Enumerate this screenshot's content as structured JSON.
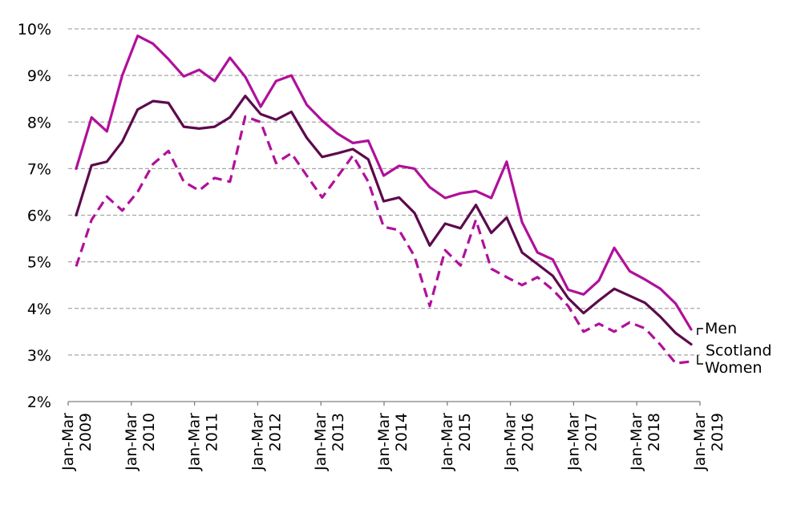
{
  "chart_data": {
    "type": "line",
    "title": "",
    "xlabel": "",
    "ylabel": "",
    "ylim": [
      0.02,
      0.1
    ],
    "y_ticks": [
      "2%",
      "3%",
      "4%",
      "5%",
      "6%",
      "7%",
      "8%",
      "9%",
      "10%"
    ],
    "x_tick_labels": [
      {
        "top": "Jan-Mar",
        "bottom": "2009"
      },
      {
        "top": "Jan-Mar",
        "bottom": "2010"
      },
      {
        "top": "Jan-Mar",
        "bottom": "2011"
      },
      {
        "top": "Jan-Mar",
        "bottom": "2012"
      },
      {
        "top": "Jan-Mar",
        "bottom": "2013"
      },
      {
        "top": "Jan-Mar",
        "bottom": "2014"
      },
      {
        "top": "Jan-Mar",
        "bottom": "2015"
      },
      {
        "top": "Jan-Mar",
        "bottom": "2016"
      },
      {
        "top": "Jan-Mar",
        "bottom": "2017"
      },
      {
        "top": "Jan-Mar",
        "bottom": "2018"
      },
      {
        "top": "Jan-Mar",
        "bottom": "2019"
      }
    ],
    "grid": true,
    "series": [
      {
        "name": "Men",
        "color": "#b0109b",
        "dash": "solid",
        "values": [
          0.07,
          0.081,
          0.078,
          0.09,
          0.0985,
          0.0968,
          0.0935,
          0.0898,
          0.0912,
          0.0888,
          0.0938,
          0.0897,
          0.0833,
          0.0888,
          0.09,
          0.0837,
          0.0803,
          0.0775,
          0.0755,
          0.076,
          0.0685,
          0.0706,
          0.07,
          0.066,
          0.0637,
          0.0647,
          0.0652,
          0.0637,
          0.0715,
          0.0585,
          0.052,
          0.0505,
          0.044,
          0.043,
          0.046,
          0.053,
          0.048,
          0.0462,
          0.0442,
          0.041,
          0.0355
        ]
      },
      {
        "name": "Scotland",
        "color": "#5d0a4c",
        "dash": "solid",
        "values": [
          0.06,
          0.0707,
          0.0715,
          0.0758,
          0.0827,
          0.0845,
          0.0841,
          0.079,
          0.0786,
          0.079,
          0.081,
          0.0856,
          0.0817,
          0.0805,
          0.0822,
          0.0766,
          0.0725,
          0.0733,
          0.0742,
          0.072,
          0.063,
          0.0638,
          0.0605,
          0.0535,
          0.0582,
          0.0572,
          0.0622,
          0.0562,
          0.0595,
          0.052,
          0.0495,
          0.047,
          0.0422,
          0.039,
          0.0417,
          0.0442,
          0.0427,
          0.0412,
          0.0382,
          0.0347,
          0.0323
        ]
      },
      {
        "name": "Women",
        "color": "#b0109b",
        "dash": "dashed",
        "values": [
          0.049,
          0.059,
          0.064,
          0.061,
          0.065,
          0.071,
          0.0738,
          0.0672,
          0.0653,
          0.068,
          0.0672,
          0.0812,
          0.08,
          0.0712,
          0.0733,
          0.0685,
          0.0638,
          0.0683,
          0.0728,
          0.0672,
          0.0575,
          0.0568,
          0.0512,
          0.0405,
          0.0525,
          0.0492,
          0.059,
          0.0485,
          0.0467,
          0.045,
          0.0467,
          0.044,
          0.0405,
          0.035,
          0.0367,
          0.035,
          0.037,
          0.0357,
          0.0322,
          0.0282,
          0.0286
        ]
      }
    ]
  }
}
